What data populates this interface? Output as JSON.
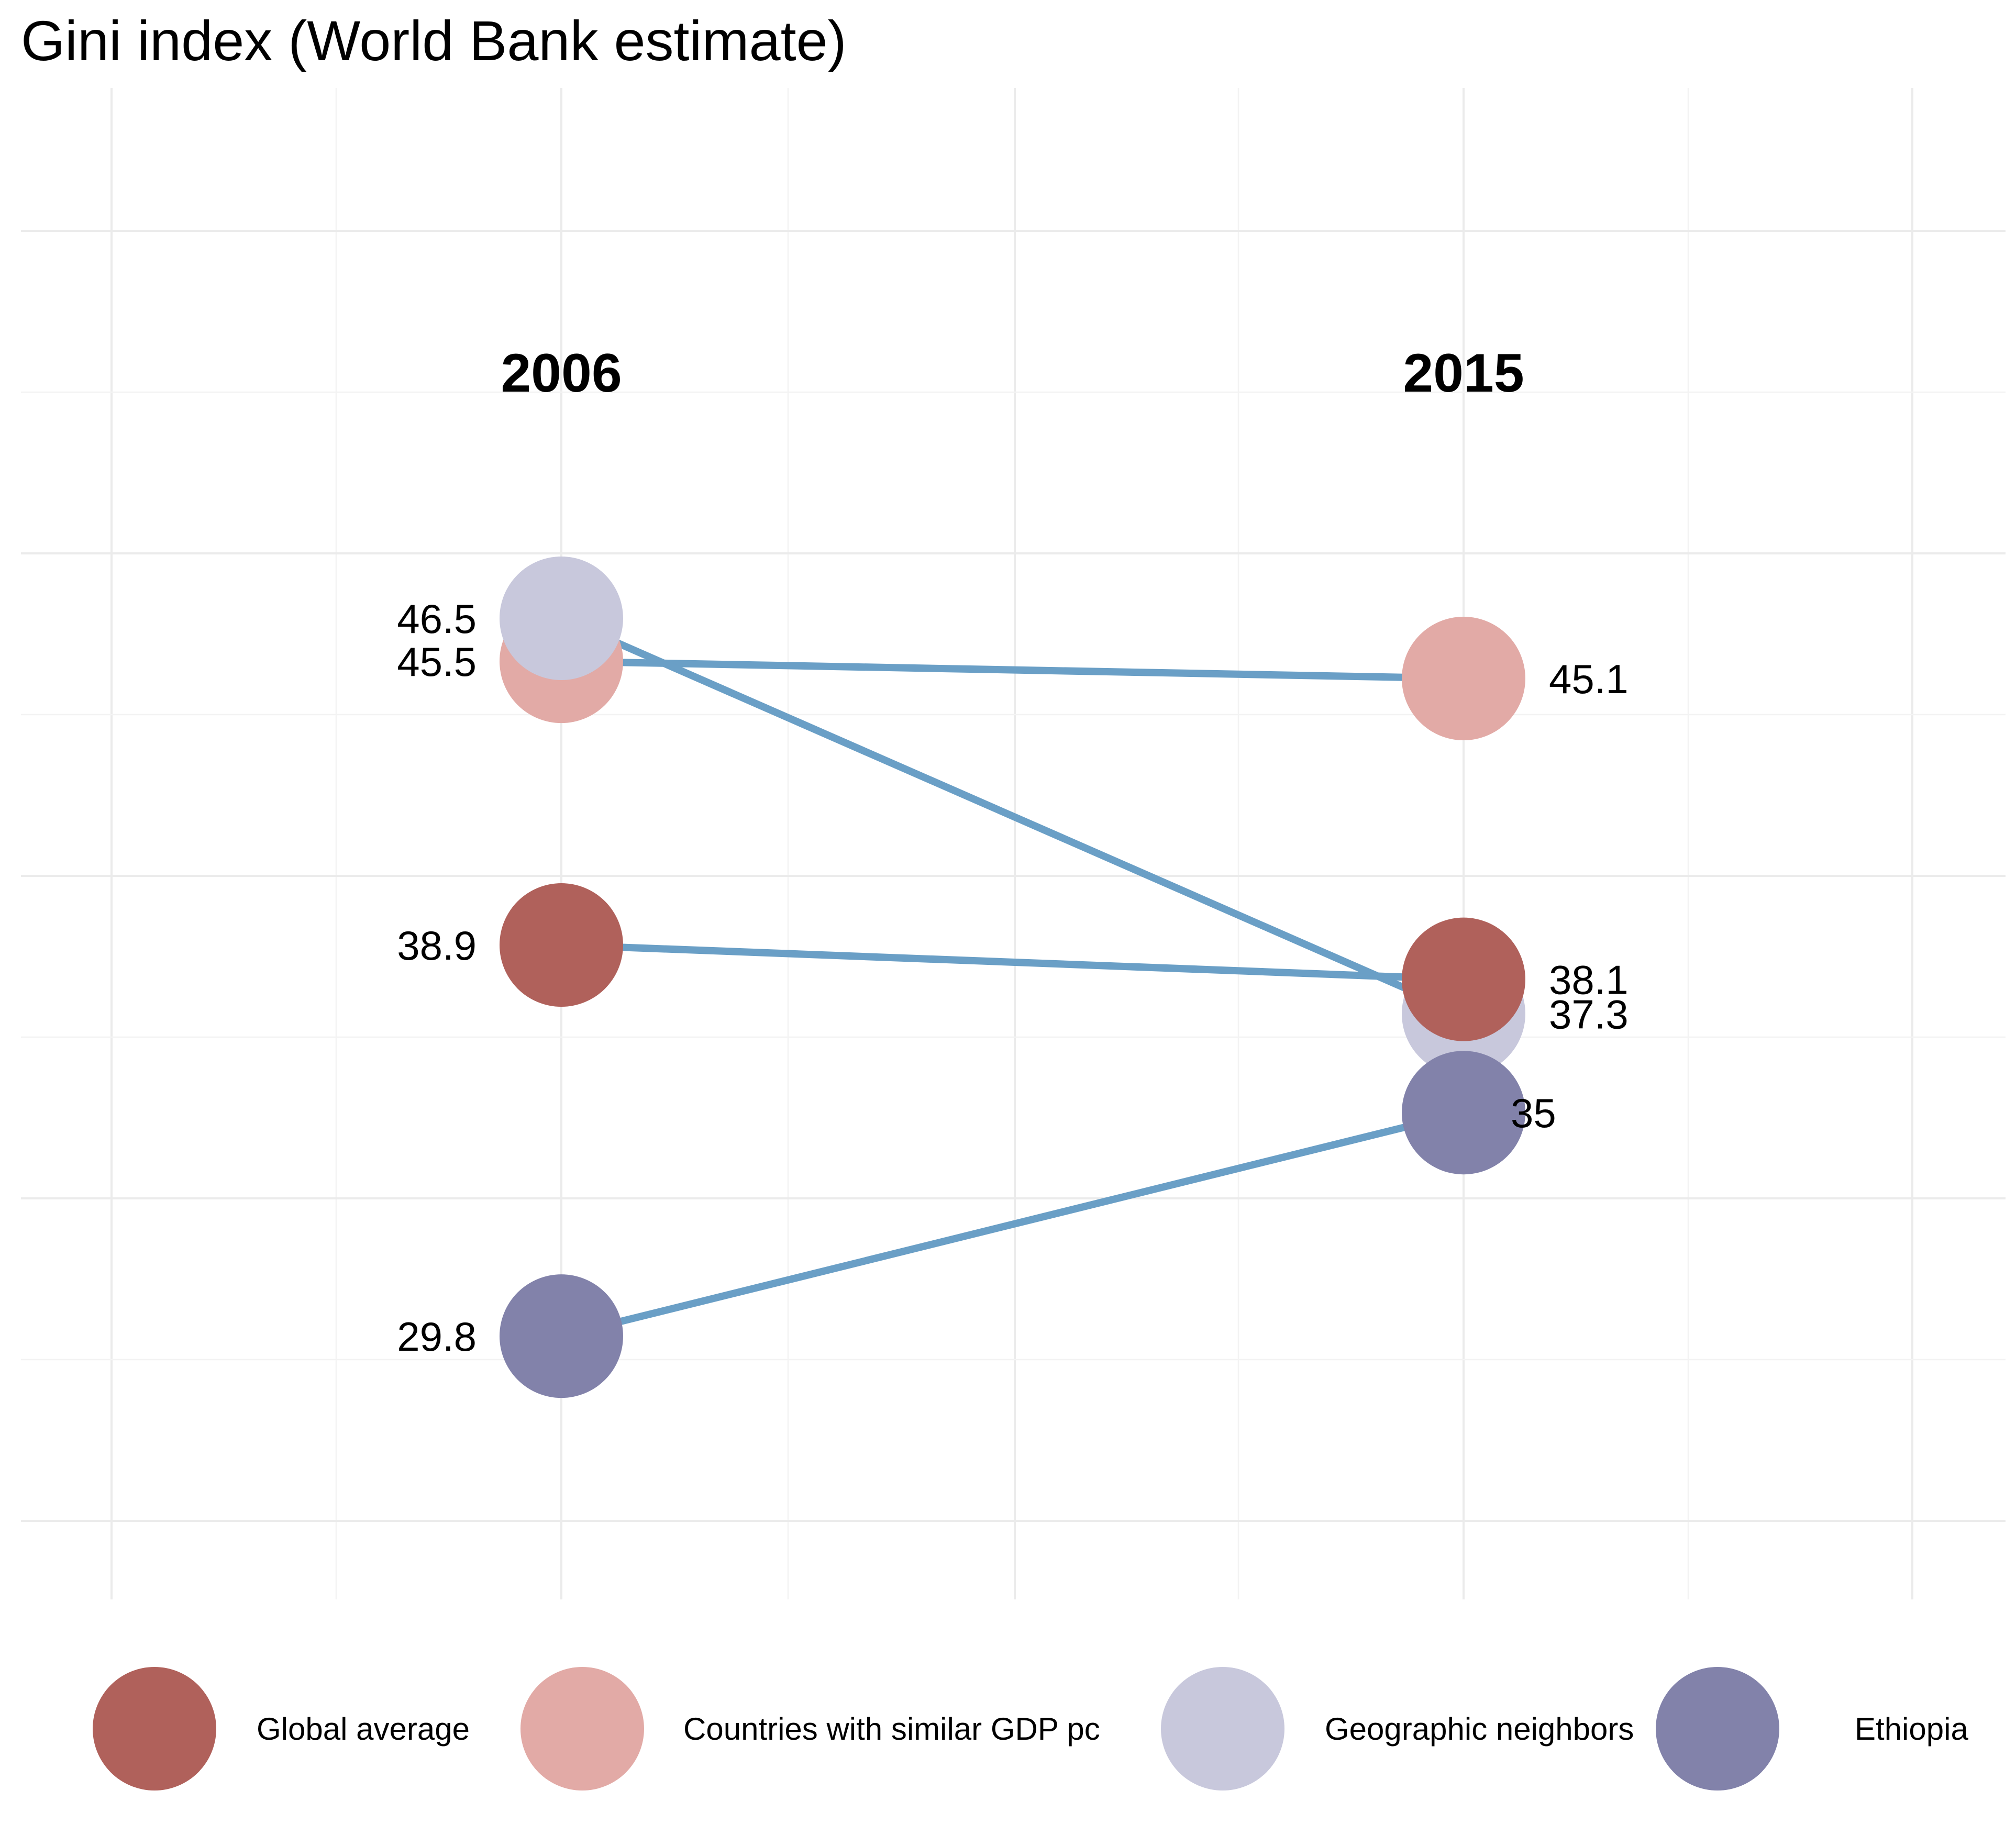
{
  "chart_data": {
    "type": "line",
    "subtype": "slope",
    "title": "Gini index (World Bank estimate)",
    "x": [
      "2006",
      "2015"
    ],
    "ylim": [
      27,
      52
    ],
    "grid": true,
    "legend_position": "bottom",
    "line_color": "#6a9fc6",
    "series": [
      {
        "name": "Global average",
        "color": "#b0615b",
        "values": [
          38.9,
          38.1
        ],
        "labels": [
          "38.9",
          "38.1"
        ]
      },
      {
        "name": "Countries with similar GDP pc",
        "color": "#e2aaa6",
        "values": [
          45.5,
          45.1
        ],
        "labels": [
          "45.5",
          "45.1"
        ]
      },
      {
        "name": "Geographic neighbors",
        "color": "#c8c8dc",
        "values": [
          46.5,
          37.3
        ],
        "labels": [
          "46.5",
          "37.3"
        ]
      },
      {
        "name": "Ethiopia",
        "color": "#8282aa",
        "values": [
          29.8,
          35
        ],
        "labels": [
          "29.8",
          "35"
        ]
      }
    ]
  }
}
